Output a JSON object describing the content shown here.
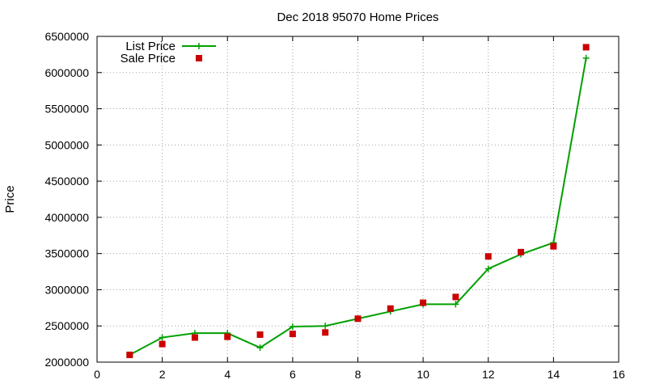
{
  "chart_data": {
    "type": "line",
    "title": "Dec 2018 95070 Home Prices",
    "xlabel": "",
    "ylabel": "Price",
    "xlim": [
      0,
      16
    ],
    "ylim": [
      2000000,
      6500000
    ],
    "xticks": [
      0,
      2,
      4,
      6,
      8,
      10,
      12,
      14,
      16
    ],
    "yticks": [
      2000000,
      2500000,
      3000000,
      3500000,
      4000000,
      4500000,
      5000000,
      5500000,
      6000000,
      6500000
    ],
    "grid": true,
    "legend_position": "top-left",
    "series": [
      {
        "name": "List Price",
        "style": "line-plus",
        "color": "#00a000",
        "x": [
          1,
          2,
          3,
          4,
          5,
          6,
          7,
          8,
          9,
          10,
          11,
          12,
          13,
          14,
          15
        ],
        "y": [
          2100000,
          2340000,
          2400000,
          2400000,
          2200000,
          2490000,
          2500000,
          2600000,
          2700000,
          2800000,
          2800000,
          3290000,
          3490000,
          3650000,
          6200000
        ]
      },
      {
        "name": "Sale Price",
        "style": "points-square",
        "color": "#cc0000",
        "x": [
          1,
          2,
          3,
          4,
          5,
          6,
          7,
          8,
          9,
          10,
          11,
          12,
          13,
          14,
          15
        ],
        "y": [
          2100000,
          2250000,
          2340000,
          2350000,
          2380000,
          2390000,
          2410000,
          2600000,
          2740000,
          2820000,
          2900000,
          3460000,
          3520000,
          3600000,
          6350000
        ]
      }
    ]
  }
}
